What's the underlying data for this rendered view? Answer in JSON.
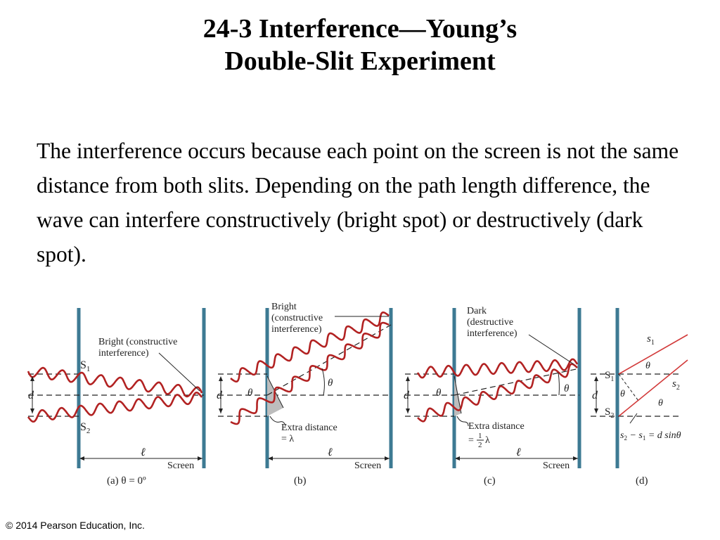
{
  "title": {
    "line1": "24-3 Interference—Young’s",
    "line2": "Double-Slit Experiment"
  },
  "body": "The interference occurs because each point on the screen is not the same distance from both slits. Depending on the path length difference, the wave can interfere constructively (bright spot) or destructively (dark spot).",
  "footer": "© 2014 Pearson Education, Inc.",
  "colors": {
    "wave": "#b22222",
    "barrier": "#3d7a93",
    "ray": "#d23a3a",
    "shade": "#bdbdbd"
  },
  "figure": {
    "panel_a": {
      "label_line1": "Bright (constructive",
      "label_line2": "interference)",
      "s1": "S",
      "s1_sub": "1",
      "s2": "S",
      "s2_sub": "2",
      "d": "d",
      "ell": "ℓ",
      "screen": "Screen",
      "caption": "(a) θ = 0º"
    },
    "panel_b": {
      "label_line1": "Bright",
      "label_line2": "(constructive",
      "label_line3": "interference)",
      "theta": "θ",
      "d": "d",
      "extra_line1": "Extra distance",
      "extra_line2": "= λ",
      "ell": "ℓ",
      "screen": "Screen",
      "caption": "(b)"
    },
    "panel_c": {
      "label_line1": "Dark",
      "label_line2": "(destructive",
      "label_line3": "interference)",
      "theta": "θ",
      "d": "d",
      "extra_line1": "Extra distance",
      "extra_eq": "=",
      "extra_num": "1",
      "extra_den": "2",
      "extra_lambda": "λ",
      "ell": "ℓ",
      "screen": "Screen",
      "caption": "(c)"
    },
    "panel_d": {
      "s1_ray": "s",
      "s1_ray_sub": "1",
      "s2_ray": "s",
      "s2_ray_sub": "2",
      "theta": "θ",
      "S1": "S",
      "S1_sub": "1",
      "S2": "S",
      "S2_sub": "2",
      "d": "d",
      "eq_a": "s",
      "eq_a_sub": "2",
      "eq_b": " − s",
      "eq_b_sub": "1",
      "eq_c": " = d sinθ",
      "caption": "(d)"
    }
  }
}
